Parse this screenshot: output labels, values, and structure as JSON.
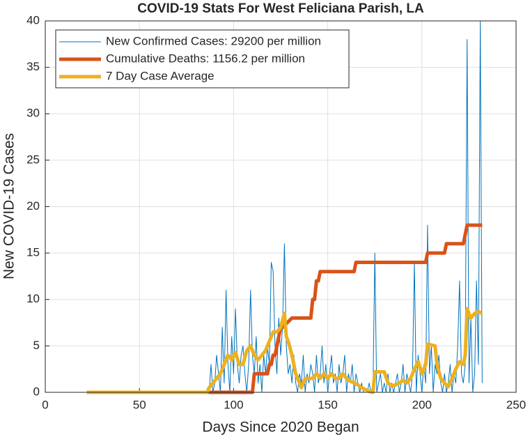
{
  "chart_data": {
    "type": "line",
    "title": "COVID-19 Stats For West Feliciana Parish, LA",
    "xlabel": "Days Since 2020 Began",
    "ylabel": "New COVID-19 Cases",
    "xlim": [
      0,
      250
    ],
    "xticks": [
      0,
      50,
      100,
      150,
      200,
      250
    ],
    "ylim": [
      0,
      40
    ],
    "yticks": [
      0,
      5,
      10,
      15,
      20,
      25,
      30,
      35,
      40
    ],
    "grid": true,
    "legend": "northwest",
    "series": [
      {
        "name": "New Confirmed Cases: 29200 per million",
        "color": "#0072bd",
        "line_width": 1,
        "x": [
          22,
          86,
          87,
          88,
          89,
          90,
          91,
          92,
          93,
          94,
          95,
          96,
          97,
          98,
          99,
          100,
          101,
          102,
          103,
          104,
          105,
          106,
          107,
          108,
          109,
          110,
          111,
          112,
          113,
          114,
          115,
          116,
          117,
          118,
          119,
          120,
          121,
          122,
          123,
          124,
          125,
          126,
          127,
          128,
          129,
          130,
          131,
          132,
          133,
          134,
          135,
          136,
          137,
          138,
          139,
          140,
          141,
          142,
          143,
          144,
          145,
          146,
          147,
          148,
          149,
          150,
          151,
          152,
          153,
          154,
          155,
          156,
          157,
          158,
          159,
          160,
          161,
          162,
          163,
          164,
          165,
          166,
          167,
          168,
          169,
          170,
          171,
          172,
          173,
          174,
          175,
          176,
          177,
          178,
          179,
          180,
          181,
          182,
          183,
          184,
          185,
          186,
          187,
          188,
          189,
          190,
          191,
          192,
          193,
          194,
          195,
          196,
          197,
          198,
          199,
          200,
          201,
          202,
          203,
          204,
          205,
          206,
          207,
          208,
          209,
          210,
          211,
          212,
          213,
          214,
          215,
          216,
          217,
          218,
          219,
          220,
          221,
          222,
          223,
          224,
          225,
          226,
          227,
          228,
          229,
          230,
          231,
          232
        ],
        "values": [
          0,
          0,
          0,
          3,
          0,
          1,
          4,
          2,
          0,
          7,
          1,
          11,
          3,
          0,
          6,
          2,
          9,
          3,
          1,
          4,
          5,
          2,
          0,
          3,
          11,
          4,
          2,
          6,
          1,
          3,
          0,
          4,
          2,
          5,
          3,
          14,
          13,
          5,
          2,
          8,
          4,
          7,
          16,
          5,
          2,
          3,
          1,
          4,
          1,
          0,
          2,
          1,
          4,
          0,
          2,
          1,
          3,
          2,
          0,
          4,
          1,
          2,
          5,
          1,
          3,
          0,
          2,
          4,
          1,
          2,
          0,
          3,
          1,
          2,
          4,
          0,
          2,
          1,
          3,
          0,
          2,
          1,
          0,
          1,
          0,
          0,
          0,
          1,
          0,
          0,
          15,
          0,
          1,
          2,
          0,
          1,
          0,
          2,
          0,
          1,
          0,
          1,
          2,
          0,
          1,
          3,
          0,
          2,
          1,
          0,
          2,
          14,
          0,
          4,
          2,
          0,
          3,
          1,
          18,
          2,
          5,
          0,
          3,
          2,
          4,
          1,
          0,
          2,
          0,
          1,
          3,
          0,
          2,
          1,
          5,
          12,
          2,
          1,
          3,
          38,
          1,
          8,
          0,
          2,
          12,
          3,
          40,
          1
        ]
      },
      {
        "name": "Cumulative Deaths: 1156.2 per million",
        "color": "#d95319",
        "line_width": 5,
        "x": [
          22,
          110,
          111,
          118,
          119,
          120,
          121,
          122,
          123,
          124,
          125,
          126,
          131,
          141,
          142,
          143,
          144,
          145,
          146,
          164,
          165,
          202,
          203,
          212,
          213,
          222,
          223,
          224,
          232
        ],
        "values": [
          0,
          0,
          2,
          2,
          3,
          3,
          4,
          4,
          5,
          6,
          7,
          7,
          8,
          8,
          10,
          10,
          12,
          12,
          13,
          13,
          14,
          14,
          15,
          15,
          16,
          16,
          17,
          18,
          18
        ]
      },
      {
        "name": "7 Day Case Average",
        "color": "#edb120",
        "line_width": 5,
        "x": [
          22,
          86,
          87,
          89,
          91,
          93,
          95,
          97,
          99,
          101,
          103,
          105,
          107,
          109,
          111,
          113,
          115,
          117,
          119,
          121,
          123,
          125,
          127,
          128,
          129,
          131,
          133,
          135,
          136,
          138,
          140,
          142,
          144,
          146,
          148,
          150,
          152,
          154,
          156,
          158,
          160,
          162,
          164,
          166,
          168,
          170,
          172,
          174,
          175,
          180,
          182,
          184,
          186,
          188,
          190,
          192,
          194,
          196,
          198,
          200,
          202,
          203,
          207,
          208,
          210,
          212,
          214,
          216,
          218,
          220,
          222,
          223,
          224,
          226,
          228,
          230,
          232
        ],
        "values": [
          0,
          0,
          0.5,
          1,
          1.5,
          2,
          3,
          4,
          3.5,
          4.3,
          3,
          3,
          4.5,
          5,
          4,
          3.5,
          4,
          4.5,
          5.5,
          6.5,
          6.5,
          7,
          8.5,
          6,
          5.5,
          4,
          2,
          1,
          0.5,
          1.5,
          1.5,
          1.5,
          2,
          1.5,
          2,
          1.5,
          2,
          1.5,
          1.5,
          2,
          1.5,
          1.2,
          1,
          0.8,
          0.5,
          0.3,
          0.1,
          0,
          2.2,
          2.2,
          1,
          0.7,
          0.8,
          1,
          1.3,
          1,
          1.5,
          2.5,
          3.3,
          2,
          3,
          5.2,
          5,
          3,
          1.5,
          1,
          0.6,
          1.5,
          2.5,
          3.3,
          3,
          4,
          9,
          8,
          8.5,
          8.7,
          8.5
        ]
      }
    ]
  }
}
